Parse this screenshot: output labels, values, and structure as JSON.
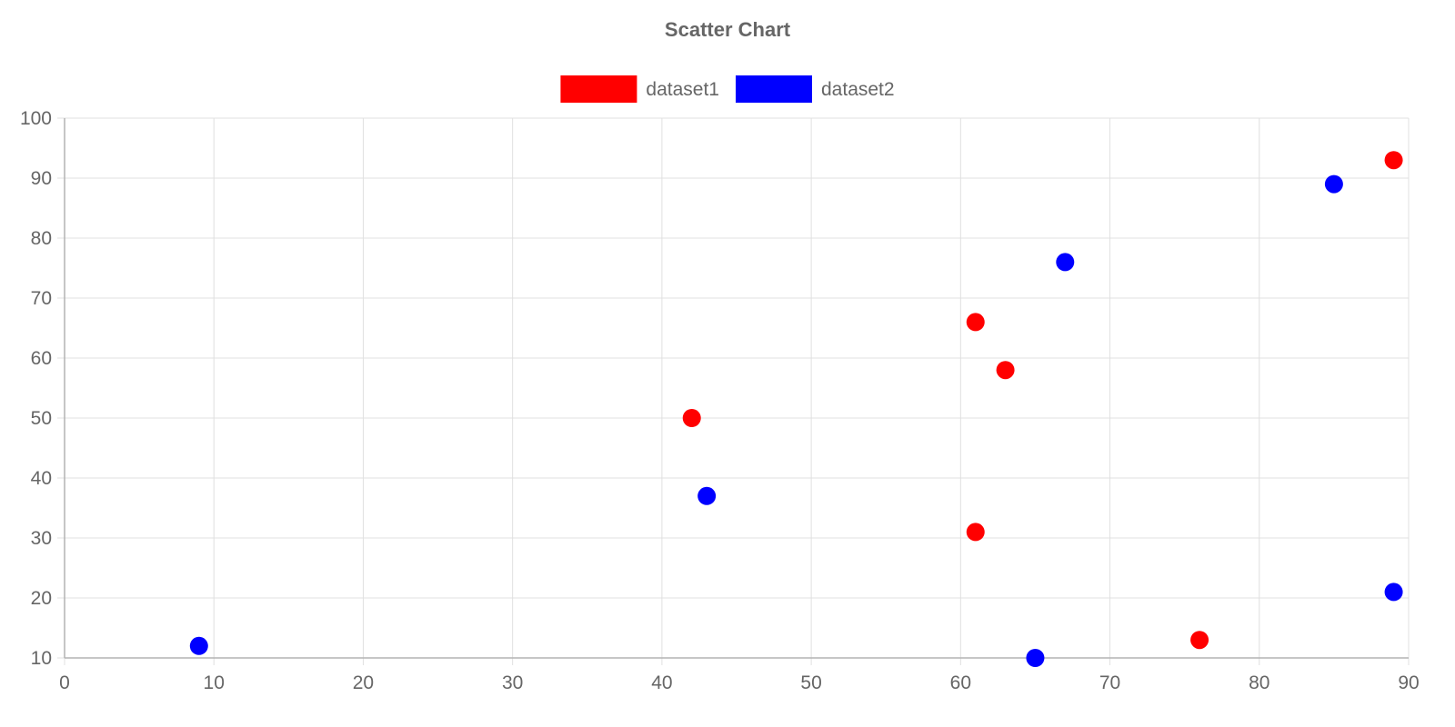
{
  "chart_data": {
    "type": "scatter",
    "title": "Scatter Chart",
    "xlabel": "",
    "ylabel": "",
    "xlim": [
      0,
      90
    ],
    "ylim": [
      10,
      100
    ],
    "x_ticks": [
      0,
      10,
      20,
      30,
      40,
      50,
      60,
      70,
      80,
      90
    ],
    "y_ticks": [
      10,
      20,
      30,
      40,
      50,
      60,
      70,
      80,
      90,
      100
    ],
    "grid": true,
    "legend_position": "top-center",
    "series": [
      {
        "name": "dataset1",
        "color": "#ff0000",
        "points": [
          {
            "x": 42,
            "y": 50
          },
          {
            "x": 61,
            "y": 66
          },
          {
            "x": 63,
            "y": 58
          },
          {
            "x": 61,
            "y": 31
          },
          {
            "x": 76,
            "y": 13
          },
          {
            "x": 89,
            "y": 93
          }
        ]
      },
      {
        "name": "dataset2",
        "color": "#0000ff",
        "points": [
          {
            "x": 9,
            "y": 12
          },
          {
            "x": 43,
            "y": 37
          },
          {
            "x": 65,
            "y": 10
          },
          {
            "x": 67,
            "y": 76
          },
          {
            "x": 85,
            "y": 89
          },
          {
            "x": 89,
            "y": 21
          }
        ]
      }
    ]
  },
  "colors": {
    "text": "#666666",
    "grid": "#e0e0e0",
    "axis": "#b3b3b3"
  }
}
